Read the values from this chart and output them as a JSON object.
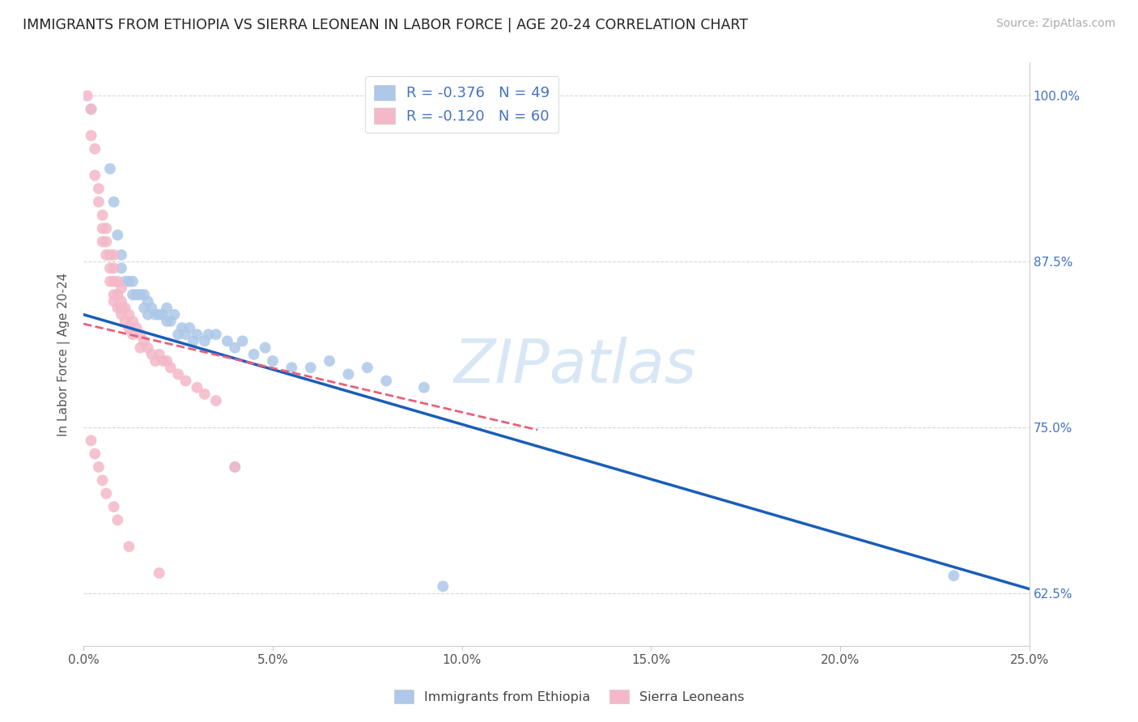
{
  "title": "IMMIGRANTS FROM ETHIOPIA VS SIERRA LEONEAN IN LABOR FORCE | AGE 20-24 CORRELATION CHART",
  "source": "Source: ZipAtlas.com",
  "ylabel": "In Labor Force | Age 20-24",
  "xlabel_ticks": [
    "0.0%",
    "5.0%",
    "10.0%",
    "15.0%",
    "20.0%",
    "25.0%"
  ],
  "ylabel_ticks": [
    "62.5%",
    "75.0%",
    "87.5%",
    "100.0%"
  ],
  "xlim": [
    0.0,
    0.25
  ],
  "ylim": [
    0.585,
    1.025
  ],
  "background_color": "#ffffff",
  "grid_color": "#d8d8d8",
  "ethiopia_color": "#adc8e8",
  "sierra_color": "#f4b8c8",
  "ethiopia_line_color": "#1a5eb8",
  "sierra_line_color": "#e8607a",
  "R_eth": -0.376,
  "N_eth": 49,
  "R_sl": -0.12,
  "N_sl": 60,
  "watermark": "ZIPatlas",
  "ethiopia_x": [
    0.002,
    0.007,
    0.008,
    0.009,
    0.01,
    0.01,
    0.011,
    0.012,
    0.013,
    0.013,
    0.014,
    0.015,
    0.016,
    0.016,
    0.017,
    0.017,
    0.018,
    0.019,
    0.02,
    0.021,
    0.022,
    0.022,
    0.023,
    0.024,
    0.025,
    0.026,
    0.027,
    0.028,
    0.029,
    0.03,
    0.032,
    0.033,
    0.035,
    0.038,
    0.04,
    0.042,
    0.045,
    0.048,
    0.05,
    0.055,
    0.06,
    0.065,
    0.07,
    0.075,
    0.08,
    0.09,
    0.095,
    0.23,
    0.04
  ],
  "ethiopia_y": [
    0.99,
    0.945,
    0.92,
    0.895,
    0.88,
    0.87,
    0.86,
    0.86,
    0.86,
    0.85,
    0.85,
    0.85,
    0.85,
    0.84,
    0.845,
    0.835,
    0.84,
    0.835,
    0.835,
    0.835,
    0.84,
    0.83,
    0.83,
    0.835,
    0.82,
    0.825,
    0.82,
    0.825,
    0.815,
    0.82,
    0.815,
    0.82,
    0.82,
    0.815,
    0.81,
    0.815,
    0.805,
    0.81,
    0.8,
    0.795,
    0.795,
    0.8,
    0.79,
    0.795,
    0.785,
    0.78,
    0.63,
    0.638,
    0.72
  ],
  "sierra_x": [
    0.001,
    0.002,
    0.002,
    0.003,
    0.003,
    0.004,
    0.004,
    0.005,
    0.005,
    0.005,
    0.006,
    0.006,
    0.006,
    0.007,
    0.007,
    0.007,
    0.008,
    0.008,
    0.008,
    0.008,
    0.008,
    0.009,
    0.009,
    0.009,
    0.01,
    0.01,
    0.01,
    0.01,
    0.011,
    0.011,
    0.012,
    0.012,
    0.013,
    0.013,
    0.014,
    0.015,
    0.015,
    0.016,
    0.017,
    0.018,
    0.019,
    0.02,
    0.021,
    0.022,
    0.023,
    0.025,
    0.027,
    0.03,
    0.032,
    0.035,
    0.002,
    0.003,
    0.004,
    0.005,
    0.006,
    0.008,
    0.009,
    0.012,
    0.02,
    0.04
  ],
  "sierra_y": [
    1.0,
    0.99,
    0.97,
    0.96,
    0.94,
    0.93,
    0.92,
    0.91,
    0.9,
    0.89,
    0.9,
    0.89,
    0.88,
    0.88,
    0.87,
    0.86,
    0.88,
    0.87,
    0.86,
    0.85,
    0.845,
    0.86,
    0.85,
    0.84,
    0.855,
    0.845,
    0.84,
    0.835,
    0.84,
    0.83,
    0.835,
    0.825,
    0.83,
    0.82,
    0.825,
    0.82,
    0.81,
    0.815,
    0.81,
    0.805,
    0.8,
    0.805,
    0.8,
    0.8,
    0.795,
    0.79,
    0.785,
    0.78,
    0.775,
    0.77,
    0.74,
    0.73,
    0.72,
    0.71,
    0.7,
    0.69,
    0.68,
    0.66,
    0.64,
    0.72
  ]
}
